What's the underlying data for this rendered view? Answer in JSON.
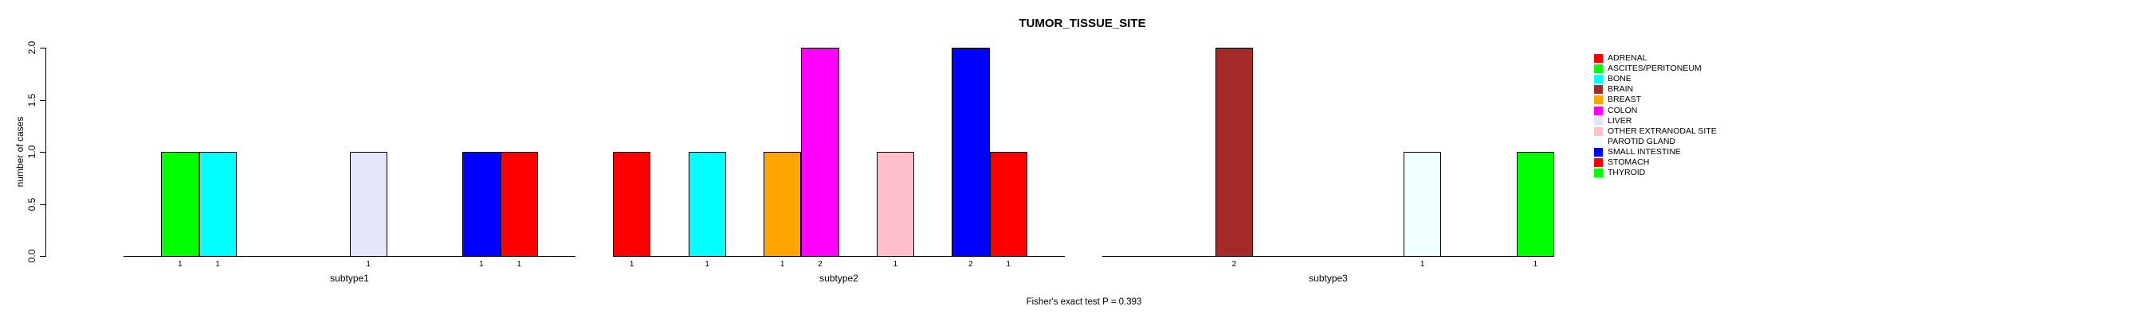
{
  "chart_data": {
    "type": "bar",
    "title": "TUMOR_TISSUE_SITE",
    "ylabel": "number of cases",
    "footer": "Fisher's exact test P = 0.393",
    "ylim": [
      0.0,
      2.0
    ],
    "yticks": [
      "0.0",
      "0.5",
      "1.0",
      "1.5",
      "2.0"
    ],
    "grid": "off",
    "legend_position": "right",
    "bar_outline_color": "#000000",
    "categories": [
      {
        "label": "ADRENAL",
        "color": "#FF0000"
      },
      {
        "label": "ASCITES/PERITONEUM",
        "color": "#00FF00"
      },
      {
        "label": "BONE",
        "color": "#00FFFF"
      },
      {
        "label": "BRAIN",
        "color": "#A52A2A"
      },
      {
        "label": "BREAST",
        "color": "#FFA500"
      },
      {
        "label": "COLON",
        "color": "#FF00FF"
      },
      {
        "label": "LIVER",
        "color": "#E6E6FA"
      },
      {
        "label": "OTHER EXTRANODAL SITE",
        "color": "#FFC0CB"
      },
      {
        "label": "PAROTID GLAND",
        "color": "#F0FFFF"
      },
      {
        "label": "SMALL INTESTINE",
        "color": "#0000FF"
      },
      {
        "label": "STOMACH",
        "color": "#FF0000"
      },
      {
        "label": "THYROID",
        "color": "#00FF00"
      }
    ],
    "groups": [
      {
        "label": "subtype1",
        "bars": [
          {
            "category": "ASCITES/PERITONEUM",
            "value": 1
          },
          {
            "category": "BONE",
            "value": 1
          },
          {
            "category": "LIVER",
            "value": 1
          },
          {
            "category": "SMALL INTESTINE",
            "value": 1
          },
          {
            "category": "STOMACH",
            "value": 1
          }
        ]
      },
      {
        "label": "subtype2",
        "bars": [
          {
            "category": "ADRENAL",
            "value": 1
          },
          {
            "category": "BONE",
            "value": 1
          },
          {
            "category": "BREAST",
            "value": 1
          },
          {
            "category": "COLON",
            "value": 2
          },
          {
            "category": "OTHER EXTRANODAL SITE",
            "value": 1
          },
          {
            "category": "SMALL INTESTINE",
            "value": 2
          },
          {
            "category": "STOMACH",
            "value": 1
          }
        ]
      },
      {
        "label": "subtype3",
        "bars": [
          {
            "category": "BRAIN",
            "value": 2
          },
          {
            "category": "PAROTID GLAND",
            "value": 1
          },
          {
            "category": "THYROID",
            "value": 1
          }
        ]
      }
    ]
  }
}
